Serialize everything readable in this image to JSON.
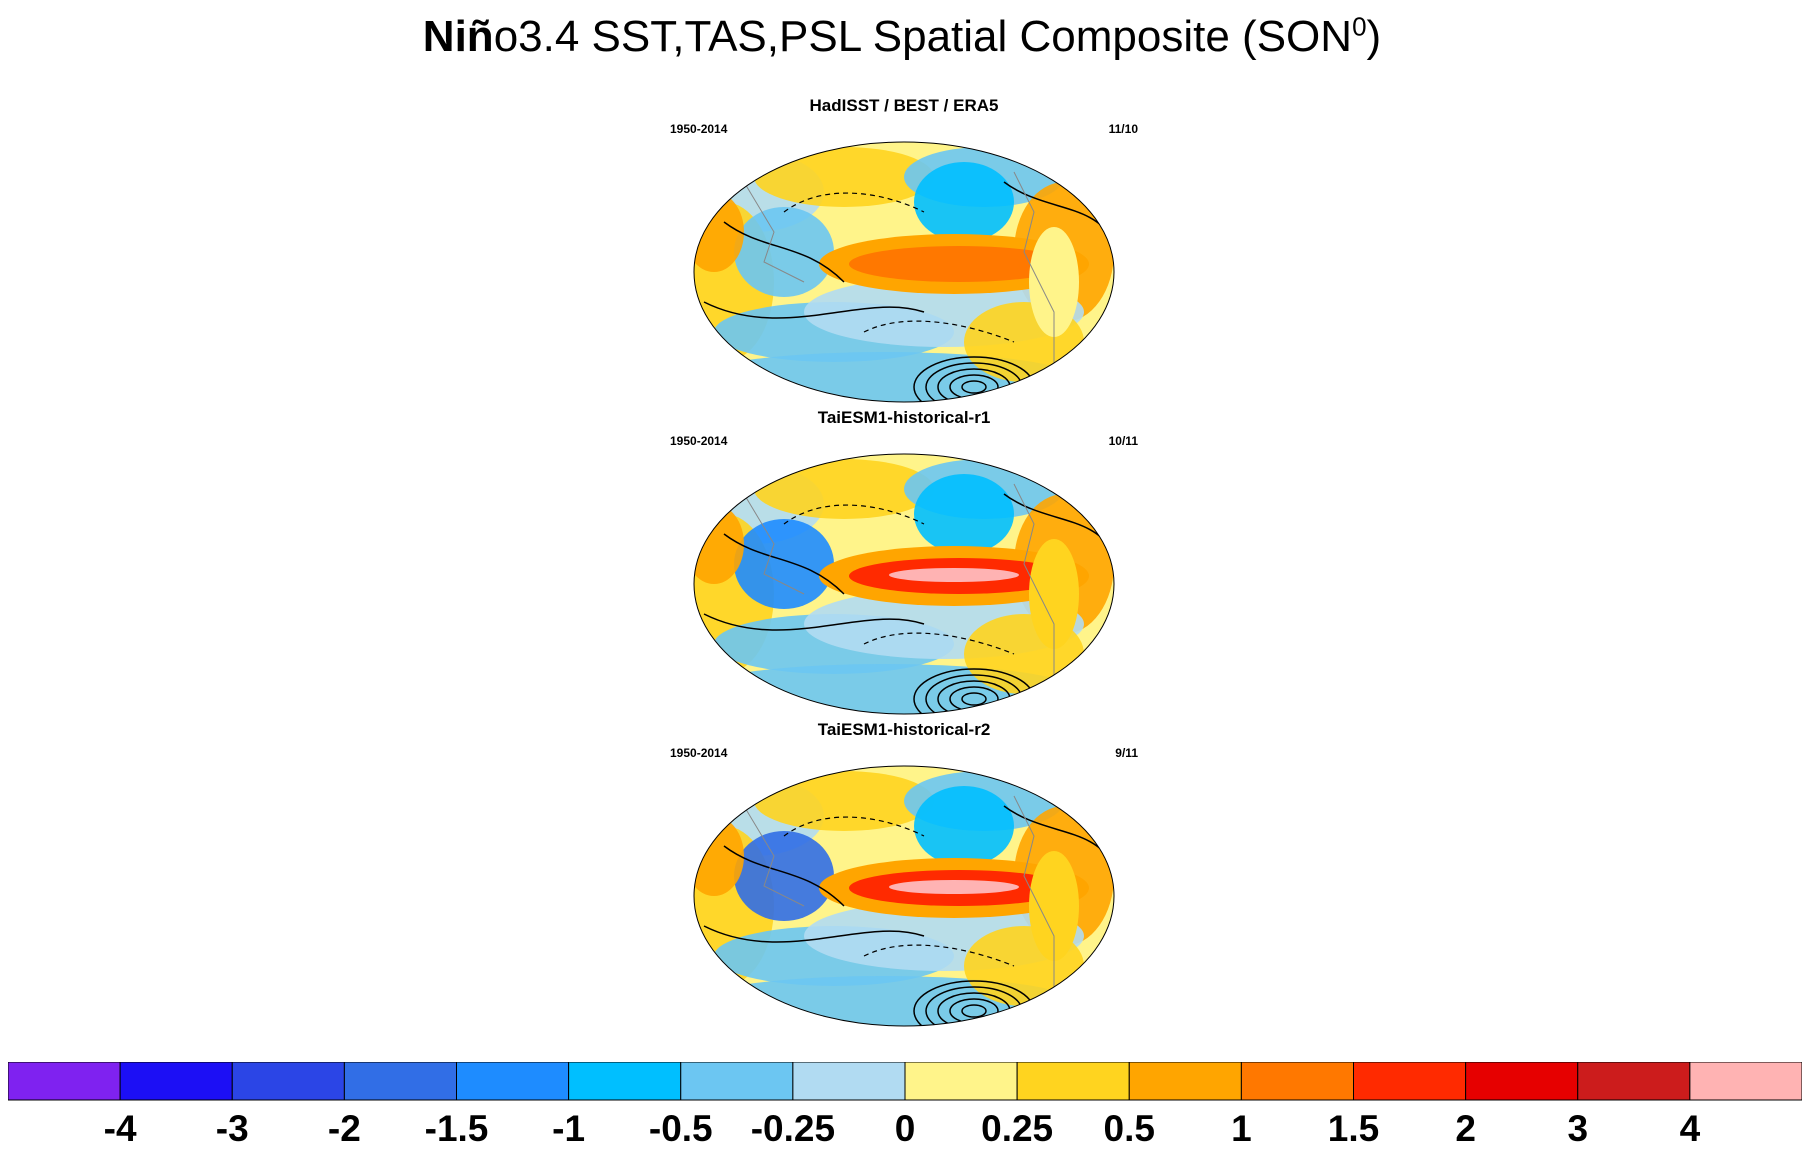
{
  "title": {
    "bold": "Niñ",
    "rest": "o3.4 SST,TAS,PSL Spatial Composite (SON",
    "superscript": "0",
    "close": ")"
  },
  "panels": [
    {
      "title": "HadISST / BEST / ERA5",
      "period": "1950-2014",
      "ratio": "11/10"
    },
    {
      "title": "TaiESM1-historical-r1",
      "period": "1950-2014",
      "ratio": "10/11"
    },
    {
      "title": "TaiESM1-historical-r2",
      "period": "1950-2014",
      "ratio": "9/11"
    }
  ],
  "colorbar": {
    "colors": [
      "#7f22f0",
      "#1c0ff5",
      "#2b45e6",
      "#316ee6",
      "#1e8cff",
      "#00bfff",
      "#6cc6f2",
      "#b1dbf2",
      "#fff48a",
      "#ffd41f",
      "#ffa500",
      "#ff7800",
      "#ff2a00",
      "#e60000",
      "#cc1c1c",
      "#ffb3b3"
    ],
    "labels": [
      "-4",
      "-3",
      "-2",
      "-1.5",
      "-1",
      "-0.5",
      "-0.25",
      "0",
      "0.25",
      "0.5",
      "1",
      "1.5",
      "2",
      "3",
      "4"
    ]
  }
}
